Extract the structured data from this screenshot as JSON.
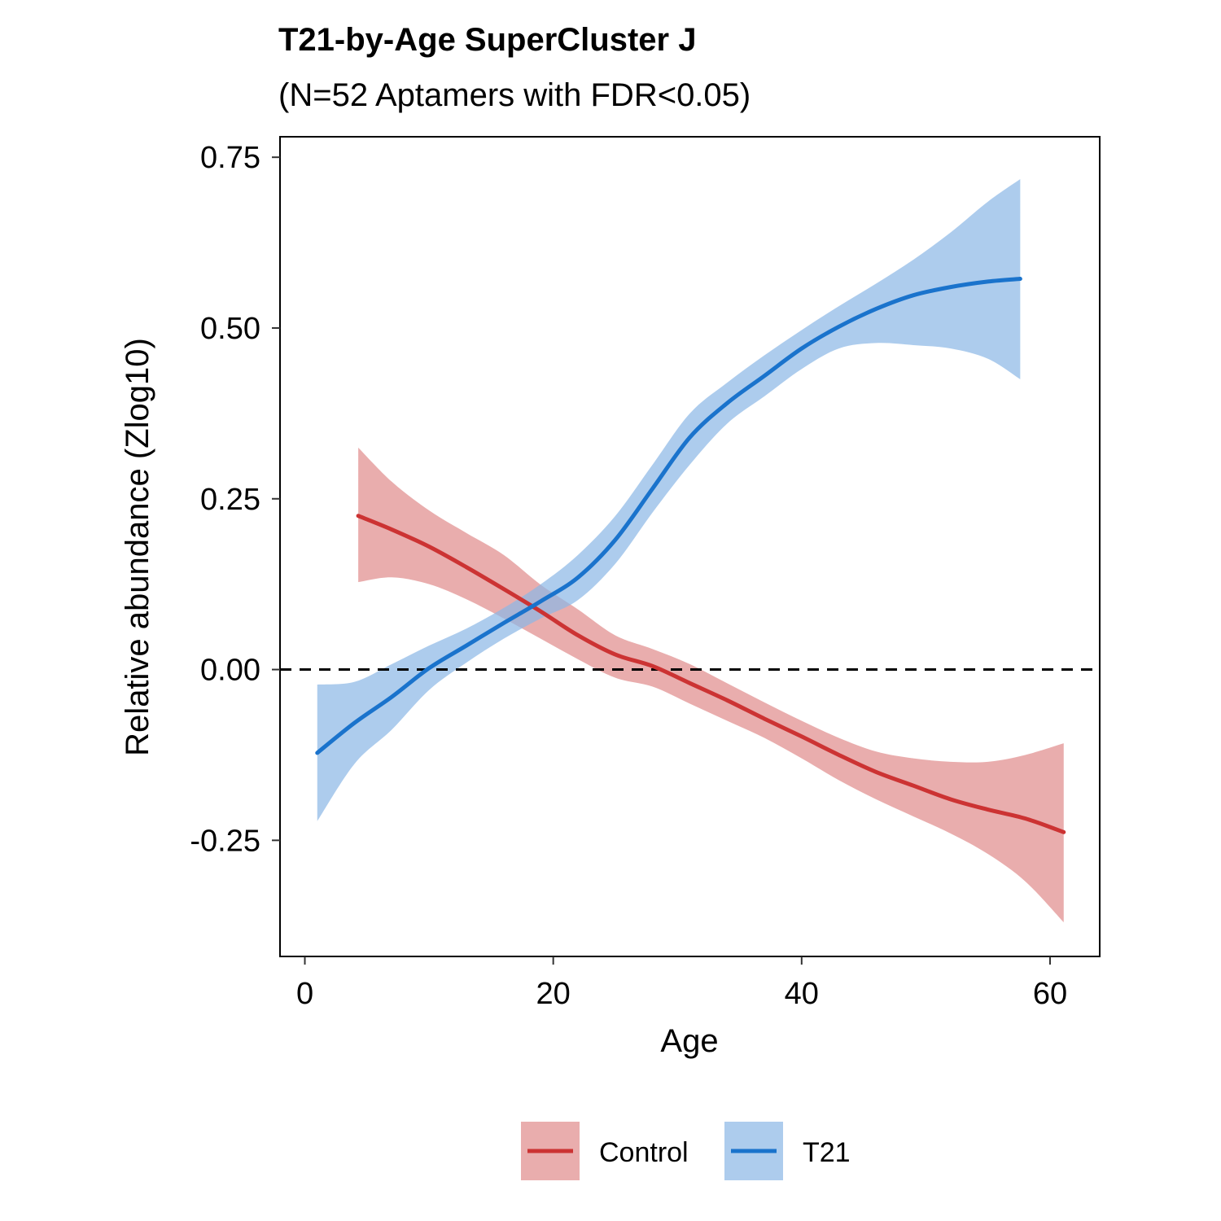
{
  "chart_data": {
    "type": "line",
    "title": "T21-by-Age SuperCluster J",
    "subtitle": "(N=52 Aptamers with FDR<0.05)",
    "xlabel": "Age",
    "ylabel": "Relative abundance (Zlog10)",
    "xlim": [
      -2,
      64
    ],
    "ylim": [
      -0.42,
      0.78
    ],
    "x_ticks": [
      0,
      20,
      40,
      60
    ],
    "x_tick_labels": [
      "0",
      "20",
      "40",
      "60"
    ],
    "y_ticks": [
      0.75,
      0.5,
      0.25,
      0.0,
      -0.25
    ],
    "y_tick_labels": [
      "0.75",
      "0.50",
      "0.25",
      "0.00",
      "-0.25"
    ],
    "reference_line": {
      "y": 0.0,
      "style": "dashed"
    },
    "grid": false,
    "legend_position": "bottom",
    "series": [
      {
        "name": "Control",
        "color": "#cc3333",
        "band_color": "#e08a8a",
        "x": [
          4.3,
          7,
          10,
          13,
          16,
          19,
          22,
          25,
          28,
          31,
          34,
          37,
          40,
          43,
          46,
          49,
          52,
          55,
          58,
          61.1
        ],
        "y": [
          0.225,
          0.205,
          0.18,
          0.15,
          0.118,
          0.085,
          0.05,
          0.022,
          0.005,
          -0.02,
          -0.045,
          -0.072,
          -0.098,
          -0.125,
          -0.15,
          -0.17,
          -0.19,
          -0.205,
          -0.218,
          -0.238
        ],
        "upper": [
          0.325,
          0.275,
          0.233,
          0.2,
          0.168,
          0.124,
          0.088,
          0.05,
          0.03,
          0.008,
          -0.02,
          -0.048,
          -0.075,
          -0.1,
          -0.12,
          -0.13,
          -0.135,
          -0.135,
          -0.125,
          -0.108
        ],
        "lower": [
          0.128,
          0.135,
          0.125,
          0.103,
          0.075,
          0.045,
          0.015,
          -0.012,
          -0.025,
          -0.05,
          -0.075,
          -0.1,
          -0.13,
          -0.162,
          -0.19,
          -0.215,
          -0.24,
          -0.27,
          -0.31,
          -0.37
        ]
      },
      {
        "name": "T21",
        "color": "#1a73cc",
        "band_color": "#8ab6e6",
        "x": [
          1.0,
          4,
          7,
          10,
          13,
          16,
          19,
          22,
          25,
          28,
          31,
          34,
          37,
          40,
          43,
          46,
          49,
          52,
          55,
          57.6
        ],
        "y": [
          -0.122,
          -0.078,
          -0.04,
          0.002,
          0.035,
          0.068,
          0.1,
          0.135,
          0.19,
          0.265,
          0.34,
          0.39,
          0.43,
          0.47,
          0.502,
          0.528,
          0.548,
          0.56,
          0.568,
          0.572
        ],
        "upper": [
          -0.022,
          -0.018,
          0.008,
          0.035,
          0.06,
          0.09,
          0.125,
          0.168,
          0.225,
          0.3,
          0.375,
          0.42,
          0.46,
          0.497,
          0.532,
          0.565,
          0.6,
          0.64,
          0.685,
          0.718
        ],
        "lower": [
          -0.222,
          -0.138,
          -0.088,
          -0.03,
          0.01,
          0.045,
          0.075,
          0.102,
          0.155,
          0.23,
          0.3,
          0.36,
          0.4,
          0.44,
          0.47,
          0.478,
          0.475,
          0.47,
          0.455,
          0.425
        ]
      }
    ]
  }
}
